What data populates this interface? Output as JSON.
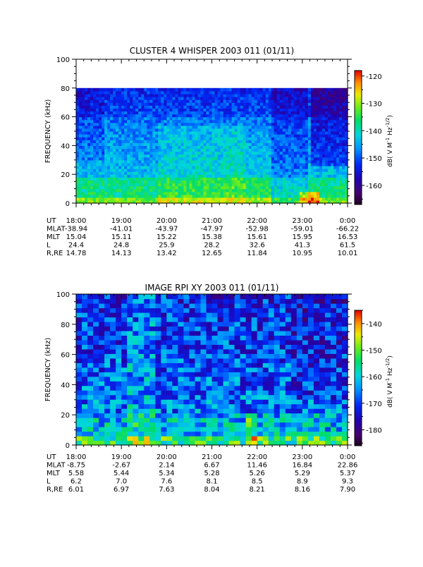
{
  "chart_data": [
    {
      "type": "heatmap",
      "title": "CLUSTER 4 WHISPER 2003 011 (01/11)",
      "ylabel": "FREQUENCY (kHz)",
      "ylim": [
        0,
        100
      ],
      "yticks": [
        "0",
        "20",
        "40",
        "60",
        "80",
        "100"
      ],
      "data_freq_max_khz": 80,
      "x_range_hours": [
        18,
        24
      ],
      "colorbar": {
        "label_prefix": "dB( V M",
        "label_sup1": "-1",
        "label_mid": " Hz",
        "label_sup2": "-1/2",
        "label_suffix": ")",
        "range": [
          -167,
          -118
        ],
        "ticks": [
          "-120",
          "-130",
          "-140",
          "-150",
          "-160"
        ]
      },
      "ephemeris": {
        "time_labels": [
          "18:00",
          "19:00",
          "20:00",
          "21:00",
          "22:00",
          "23:00",
          "0:00"
        ],
        "rows": [
          {
            "label": "UT",
            "values": []
          },
          {
            "label": "MLAT",
            "values": [
              "-38.94",
              "-41.01",
              "-43.97",
              "-47.97",
              "-52.98",
              "-59.01",
              "-66.22"
            ]
          },
          {
            "label": "MLT",
            "values": [
              "15.04",
              "15.11",
              "15.22",
              "15.38",
              "15.61",
              "15.95",
              "16.53"
            ]
          },
          {
            "label": "L",
            "values": [
              "24.4",
              "24.8",
              "25.9",
              "28.2",
              "32.6",
              "41.3",
              "61.5"
            ]
          },
          {
            "label": "R,RE",
            "values": [
              "14.78",
              "14.13",
              "13.42",
              "12.65",
              "11.84",
              "10.95",
              "10.01"
            ]
          }
        ]
      }
    },
    {
      "type": "heatmap",
      "title": "IMAGE RPI XY 2003 011 (01/11)",
      "ylabel": "FREQUENCY (kHz)",
      "ylim": [
        0,
        100
      ],
      "yticks": [
        "0",
        "20",
        "40",
        "60",
        "80",
        "100"
      ],
      "data_freq_max_khz": 103,
      "x_range_hours": [
        18,
        24
      ],
      "colorbar": {
        "label_prefix": "dB( V M",
        "label_sup1": "-1",
        "label_mid": " Hz",
        "label_sup2": "-1/2",
        "label_suffix": ")",
        "range": [
          -186,
          -135
        ],
        "ticks": [
          "-140",
          "-150",
          "-160",
          "-170",
          "-180"
        ]
      },
      "ephemeris": {
        "time_labels": [
          "18:00",
          "19:00",
          "20:00",
          "21:00",
          "22:00",
          "23:00",
          "0:00"
        ],
        "rows": [
          {
            "label": "UT",
            "values": []
          },
          {
            "label": "MLAT",
            "values": [
              "-8.75",
              "-2.67",
              "2.14",
              "6.67",
              "11.46",
              "16.84",
              "22.86"
            ]
          },
          {
            "label": "MLT",
            "values": [
              "5.58",
              "5.44",
              "5.34",
              "5.28",
              "5.26",
              "5.29",
              "5.37"
            ]
          },
          {
            "label": "L",
            "values": [
              "6.2",
              "7.0",
              "7.6",
              "8.1",
              "8.5",
              "8.9",
              "9.3"
            ]
          },
          {
            "label": "R,RE",
            "values": [
              "6.01",
              "6.97",
              "7.63",
              "8.04",
              "8.21",
              "8.16",
              "7.90"
            ]
          }
        ]
      }
    }
  ]
}
